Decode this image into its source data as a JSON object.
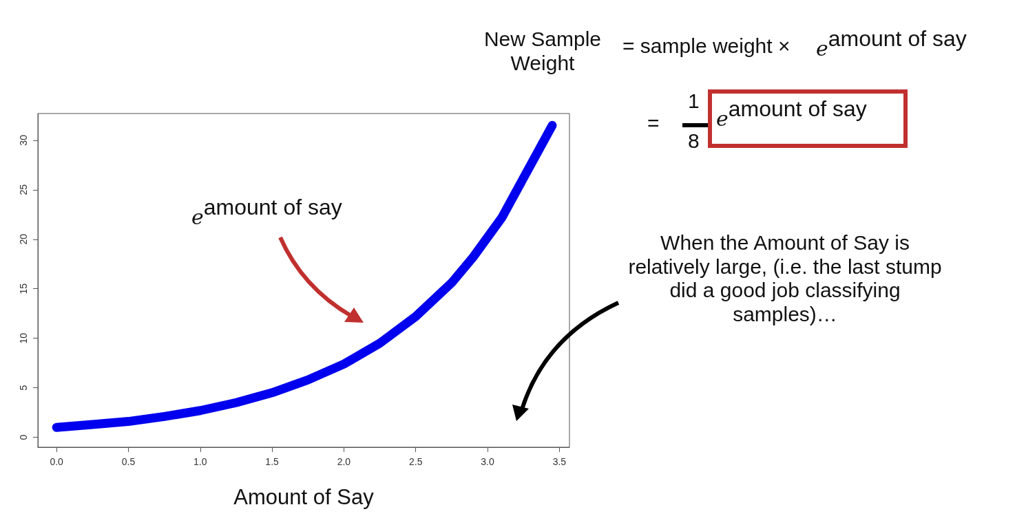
{
  "chart_data": {
    "type": "line",
    "xlabel": "Amount of Say",
    "x": [
      0,
      0.25,
      0.5,
      0.75,
      1.0,
      1.25,
      1.5,
      1.75,
      2.0,
      2.25,
      2.5,
      2.75,
      2.9,
      3.1,
      3.45
    ],
    "series": [
      {
        "color": "#0000ee",
        "values": [
          1,
          1.3,
          1.6,
          2.1,
          2.7,
          3.5,
          4.5,
          5.8,
          7.4,
          9.5,
          12.2,
          15.6,
          18.2,
          22.2,
          31.5
        ]
      }
    ],
    "xlim": [
      -0.13,
      3.57
    ],
    "xticks": [
      {
        "value": 0,
        "label": "0.0"
      },
      {
        "value": 0.5,
        "label": "0.5"
      },
      {
        "value": 1,
        "label": "1.0"
      },
      {
        "value": 1.5,
        "label": "1.5"
      },
      {
        "value": 2,
        "label": "2.0"
      },
      {
        "value": 2.5,
        "label": "2.5"
      },
      {
        "value": 3,
        "label": "3.0"
      },
      {
        "value": 3.5,
        "label": "3.5"
      }
    ],
    "ylim": [
      -1,
      32.7
    ],
    "yticks": [
      0,
      5,
      10,
      15,
      20,
      25,
      30
    ],
    "annotations": [
      "New Sample Weight",
      "= sample weight ×",
      "e$^{amount of say}$",
      "=",
      "1",
      "8",
      "e$^{amount of say}$",
      "e$^{amount of say}$",
      "When the Amount of Say is relatively large, (i.e. the last stump did a good job classifying samples)…"
    ]
  }
}
